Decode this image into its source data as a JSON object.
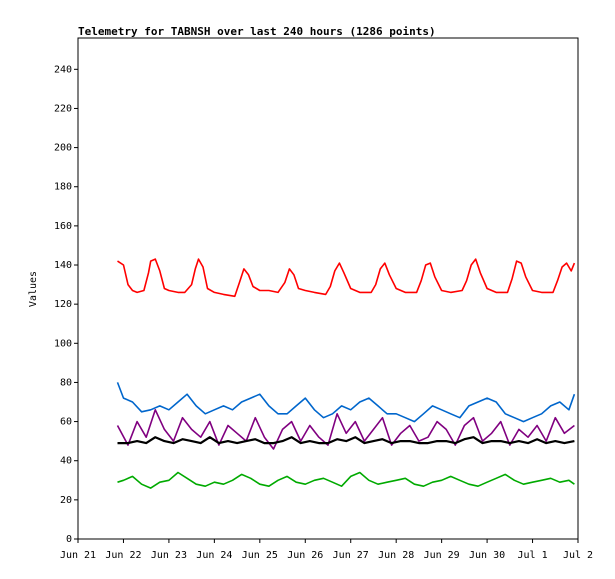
{
  "chart_data": {
    "type": "line",
    "title": "Telemetry for TABNSH over last 240 hours (1286 points)",
    "ylabel": "Values",
    "xlabel": "",
    "ylim": [
      0,
      256
    ],
    "yticks": [
      0,
      20,
      40,
      60,
      80,
      100,
      120,
      140,
      160,
      180,
      200,
      220,
      240
    ],
    "xticks": [
      "Jun 21",
      "Jun 22",
      "Jun 23",
      "Jun 24",
      "Jun 25",
      "Jun 26",
      "Jun 27",
      "Jun 28",
      "Jun 29",
      "Jun 30",
      "Jul 1",
      "Jul 2"
    ],
    "grid": false,
    "legend": "none",
    "series": [
      {
        "color": "#ff0000",
        "days": [
          21.87,
          22.0,
          22.1,
          22.2,
          22.3,
          22.45,
          22.55,
          22.6,
          22.7,
          22.8,
          22.9,
          23.0,
          23.2,
          23.35,
          23.5,
          23.58,
          23.65,
          23.75,
          23.85,
          24.0,
          24.2,
          24.45,
          24.55,
          24.65,
          24.75,
          24.85,
          25.0,
          25.2,
          25.4,
          25.55,
          25.65,
          25.75,
          25.85,
          26.0,
          26.2,
          26.45,
          26.55,
          26.65,
          26.75,
          26.85,
          27.0,
          27.2,
          27.45,
          27.55,
          27.65,
          27.75,
          27.85,
          28.0,
          28.2,
          28.45,
          28.55,
          28.65,
          28.75,
          28.85,
          29.0,
          29.2,
          29.45,
          29.55,
          29.65,
          29.75,
          29.85,
          30.0,
          30.2,
          30.45,
          30.55,
          30.65,
          30.75,
          30.85,
          31.0,
          31.2,
          31.45,
          31.55,
          31.65,
          31.75,
          31.85,
          31.92
        ],
        "values": [
          142,
          140,
          130,
          127,
          126,
          127,
          136,
          142,
          143,
          137,
          128,
          127,
          126,
          126,
          130,
          138,
          143,
          139,
          128,
          126,
          125,
          124,
          131,
          138,
          135,
          129,
          127,
          127,
          126,
          131,
          138,
          135,
          128,
          127,
          126,
          125,
          129,
          137,
          141,
          136,
          128,
          126,
          126,
          130,
          138,
          141,
          135,
          128,
          126,
          126,
          132,
          140,
          141,
          134,
          127,
          126,
          127,
          132,
          140,
          143,
          136,
          128,
          126,
          126,
          133,
          142,
          141,
          134,
          127,
          126,
          126,
          132,
          139,
          141,
          137,
          141
        ]
      },
      {
        "color": "#0066cc",
        "days": [
          21.87,
          22.0,
          22.2,
          22.4,
          22.6,
          22.8,
          23.0,
          23.2,
          23.4,
          23.6,
          23.8,
          24.0,
          24.2,
          24.4,
          24.6,
          24.8,
          25.0,
          25.2,
          25.4,
          25.6,
          25.8,
          26.0,
          26.2,
          26.4,
          26.6,
          26.8,
          27.0,
          27.2,
          27.4,
          27.6,
          27.8,
          28.0,
          28.2,
          28.4,
          28.6,
          28.8,
          29.0,
          29.2,
          29.4,
          29.6,
          29.8,
          30.0,
          30.2,
          30.4,
          30.6,
          30.8,
          31.0,
          31.2,
          31.4,
          31.6,
          31.8,
          31.92
        ],
        "values": [
          80,
          72,
          70,
          65,
          66,
          68,
          66,
          70,
          74,
          68,
          64,
          66,
          68,
          66,
          70,
          72,
          74,
          68,
          64,
          64,
          68,
          72,
          66,
          62,
          64,
          68,
          66,
          70,
          72,
          68,
          64,
          64,
          62,
          60,
          64,
          68,
          66,
          64,
          62,
          68,
          70,
          72,
          70,
          64,
          62,
          60,
          62,
          64,
          68,
          70,
          66,
          74
        ]
      },
      {
        "color": "#800080",
        "days": [
          21.87,
          22.1,
          22.3,
          22.5,
          22.7,
          22.9,
          23.1,
          23.3,
          23.5,
          23.7,
          23.9,
          24.1,
          24.3,
          24.5,
          24.7,
          24.9,
          25.1,
          25.3,
          25.5,
          25.7,
          25.9,
          26.1,
          26.3,
          26.5,
          26.7,
          26.9,
          27.1,
          27.3,
          27.5,
          27.7,
          27.9,
          28.1,
          28.3,
          28.5,
          28.7,
          28.9,
          29.1,
          29.3,
          29.5,
          29.7,
          29.9,
          30.1,
          30.3,
          30.5,
          30.7,
          30.9,
          31.1,
          31.3,
          31.5,
          31.7,
          31.92
        ],
        "values": [
          58,
          48,
          60,
          52,
          66,
          56,
          50,
          62,
          56,
          52,
          60,
          48,
          58,
          54,
          50,
          62,
          52,
          46,
          56,
          60,
          50,
          58,
          52,
          48,
          64,
          54,
          60,
          50,
          56,
          62,
          48,
          54,
          58,
          50,
          52,
          60,
          56,
          48,
          58,
          62,
          50,
          54,
          60,
          48,
          56,
          52,
          58,
          50,
          62,
          54,
          58
        ]
      },
      {
        "color": "#000000",
        "days": [
          21.87,
          22.1,
          22.3,
          22.5,
          22.7,
          22.9,
          23.1,
          23.3,
          23.5,
          23.7,
          23.9,
          24.1,
          24.3,
          24.5,
          24.7,
          24.9,
          25.1,
          25.3,
          25.5,
          25.7,
          25.9,
          26.1,
          26.3,
          26.5,
          26.7,
          26.9,
          27.1,
          27.3,
          27.5,
          27.7,
          27.9,
          28.1,
          28.3,
          28.5,
          28.7,
          28.9,
          29.1,
          29.3,
          29.5,
          29.7,
          29.9,
          30.1,
          30.3,
          30.5,
          30.7,
          30.9,
          31.1,
          31.3,
          31.5,
          31.7,
          31.92
        ],
        "values": [
          49,
          49,
          50,
          49,
          52,
          50,
          49,
          51,
          50,
          49,
          52,
          49,
          50,
          49,
          50,
          51,
          49,
          49,
          50,
          52,
          49,
          50,
          49,
          49,
          51,
          50,
          52,
          49,
          50,
          51,
          49,
          50,
          50,
          49,
          49,
          50,
          50,
          49,
          51,
          52,
          49,
          50,
          50,
          49,
          50,
          49,
          51,
          49,
          50,
          49,
          50
        ]
      },
      {
        "color": "#00aa00",
        "days": [
          21.87,
          22.0,
          22.2,
          22.4,
          22.6,
          22.8,
          23.0,
          23.2,
          23.4,
          23.6,
          23.8,
          24.0,
          24.2,
          24.4,
          24.6,
          24.8,
          25.0,
          25.2,
          25.4,
          25.6,
          25.8,
          26.0,
          26.2,
          26.4,
          26.6,
          26.8,
          27.0,
          27.2,
          27.4,
          27.6,
          27.8,
          28.0,
          28.2,
          28.4,
          28.6,
          28.8,
          29.0,
          29.2,
          29.4,
          29.6,
          29.8,
          30.0,
          30.2,
          30.4,
          30.6,
          30.8,
          31.0,
          31.2,
          31.4,
          31.6,
          31.8,
          31.92
        ],
        "values": [
          29,
          30,
          32,
          28,
          26,
          29,
          30,
          34,
          31,
          28,
          27,
          29,
          28,
          30,
          33,
          31,
          28,
          27,
          30,
          32,
          29,
          28,
          30,
          31,
          29,
          27,
          32,
          34,
          30,
          28,
          29,
          30,
          31,
          28,
          27,
          29,
          30,
          32,
          30,
          28,
          27,
          29,
          31,
          33,
          30,
          28,
          29,
          30,
          31,
          29,
          30,
          28
        ]
      }
    ]
  }
}
